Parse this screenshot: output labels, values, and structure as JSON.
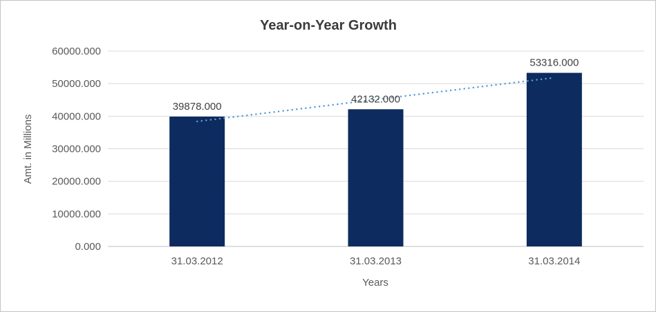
{
  "chart_data": {
    "type": "bar",
    "title": "Year-on-Year Growth",
    "xlabel": "Years",
    "ylabel": "Amt. in Millions",
    "categories": [
      "31.03.2012",
      "31.03.2013",
      "31.03.2014"
    ],
    "values": [
      39878,
      42132,
      53316
    ],
    "data_labels": [
      "39878.000",
      "42132.000",
      "53316.000"
    ],
    "ylim": [
      0,
      60000
    ],
    "ytick_step": 10000,
    "ytick_labels": [
      "0.000",
      "10000.000",
      "20000.000",
      "30000.000",
      "40000.000",
      "50000.000",
      "60000.000"
    ],
    "grid": true,
    "legend": false,
    "bar_color": "#0d2b5e",
    "trendline": {
      "type": "linear",
      "style": "dotted",
      "color": "#5b9bd5"
    },
    "colors": {
      "gridline": "#d9d9d9",
      "axis_line": "#bfbfbf"
    }
  }
}
